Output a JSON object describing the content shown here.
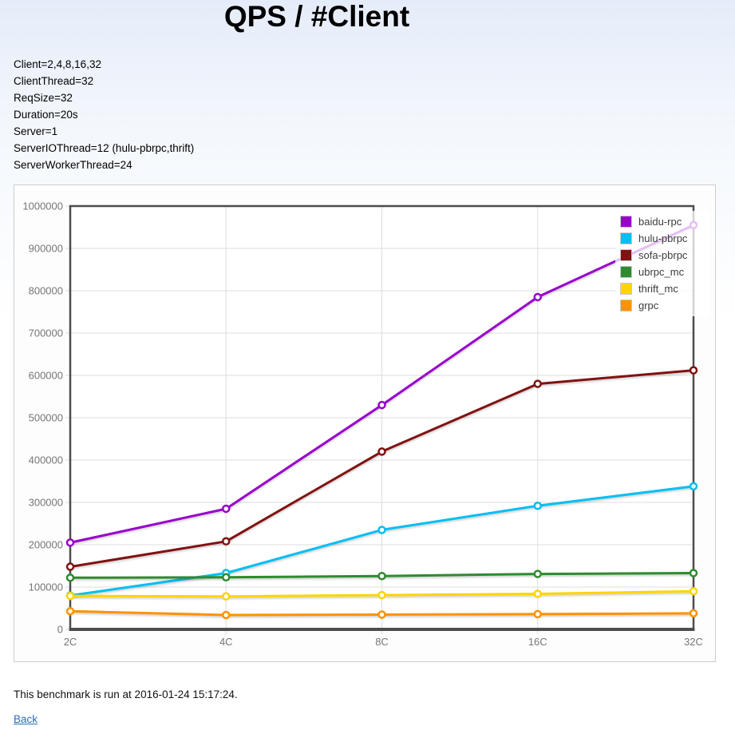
{
  "title": "QPS / #Client",
  "params": [
    "Client=2,4,8,16,32",
    "ClientThread=32",
    "ReqSize=32",
    "Duration=20s",
    "Server=1",
    "ServerIOThread=12 (hulu-pbrpc,thrift)",
    "ServerWorkerThread=24"
  ],
  "footer": {
    "note": "This benchmark is run at 2016-01-24 15:17:24.",
    "back_label": "Back"
  },
  "chart_data": {
    "type": "line",
    "title": "QPS / #Client",
    "xlabel": "",
    "ylabel": "",
    "categories": [
      "2C",
      "4C",
      "8C",
      "16C",
      "32C"
    ],
    "series": [
      {
        "name": "baidu-rpc",
        "color": "#9900CC",
        "values": [
          205000,
          285000,
          530000,
          785000,
          955000
        ]
      },
      {
        "name": "hulu-pbrpc",
        "color": "#00BFF3",
        "values": [
          80000,
          133000,
          235000,
          292000,
          338000
        ]
      },
      {
        "name": "sofa-pbrpc",
        "color": "#801212",
        "values": [
          148000,
          208000,
          420000,
          580000,
          612000
        ]
      },
      {
        "name": "ubrpc_mc",
        "color": "#2E8B2E",
        "values": [
          122000,
          123000,
          126000,
          131000,
          133000
        ]
      },
      {
        "name": "thrift_mc",
        "color": "#FFD500",
        "values": [
          79000,
          78000,
          81000,
          84000,
          90000
        ]
      },
      {
        "name": "grpc",
        "color": "#FF9200",
        "values": [
          43000,
          34000,
          35000,
          36000,
          38000
        ]
      }
    ],
    "ylim": [
      0,
      1000000
    ],
    "y_tick_step": 100000,
    "y_tick_labels": [
      "0",
      "100000",
      "200000",
      "300000",
      "400000",
      "500000",
      "600000",
      "700000",
      "800000",
      "900000",
      "1000000"
    ],
    "grid": true,
    "legend_position": "top-right",
    "marker": "open-circle",
    "grid_color": "#DDDDDD",
    "frame_color": "#4D4D4D",
    "tick_label_color": "#757575"
  }
}
